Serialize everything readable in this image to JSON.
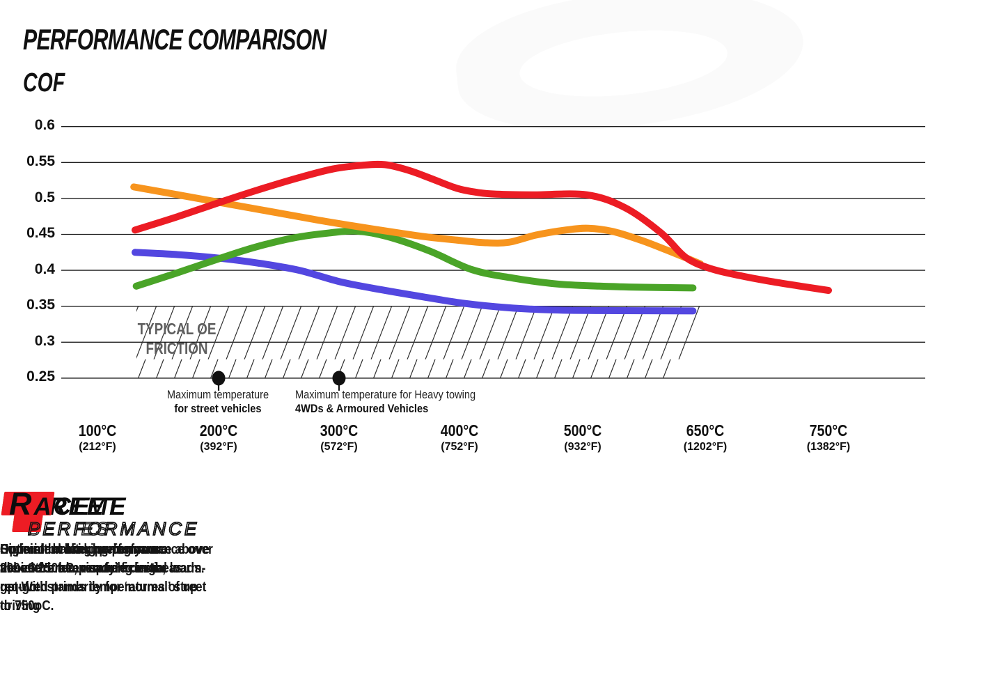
{
  "title": "PERFORMANCE COMPARISON",
  "chart_data": {
    "type": "line",
    "title": "PERFORMANCE COMPARISON",
    "ylabel": "COF",
    "xlabel": "",
    "ylim": [
      0.25,
      0.6
    ],
    "grid": "horizontal",
    "legend_position": "bottom",
    "y_ticks": [
      "0.6",
      "0.55",
      "0.5",
      "0.45",
      "0.4",
      "0.35",
      "0.3",
      "0.25"
    ],
    "x_ticks": [
      {
        "temp": 100,
        "label_c": "100°C",
        "label_f": "(212°F)"
      },
      {
        "temp": 200,
        "label_c": "200°C",
        "label_f": "(392°F)"
      },
      {
        "temp": 300,
        "label_c": "300°C",
        "label_f": "(572°F)"
      },
      {
        "temp": 400,
        "label_c": "400°C",
        "label_f": "(752°F)"
      },
      {
        "temp": 500,
        "label_c": "500°C",
        "label_f": "(932°F)"
      },
      {
        "temp": 650,
        "label_c": "650°C",
        "label_f": "(1202°F)"
      },
      {
        "temp": 750,
        "label_c": "750°C",
        "label_f": "(1382°F)"
      }
    ],
    "series": [
      {
        "name": "Street Series",
        "color": "#5347e0",
        "points": [
          [
            131,
            0.425
          ],
          [
            165,
            0.422
          ],
          [
            200,
            0.417
          ],
          [
            233,
            0.41
          ],
          [
            267,
            0.4
          ],
          [
            301,
            0.384
          ],
          [
            335,
            0.373
          ],
          [
            370,
            0.363
          ],
          [
            404,
            0.354
          ],
          [
            439,
            0.348
          ],
          [
            473,
            0.345
          ],
          [
            520,
            0.344
          ],
          [
            635,
            0.3435
          ]
        ]
      },
      {
        "name": "Street Performance",
        "color": "#4aa428",
        "points": [
          [
            132,
            0.378
          ],
          [
            165,
            0.396
          ],
          [
            200,
            0.416
          ],
          [
            230,
            0.432
          ],
          [
            262,
            0.445
          ],
          [
            292,
            0.452
          ],
          [
            315,
            0.4545
          ],
          [
            340,
            0.447
          ],
          [
            375,
            0.427
          ],
          [
            410,
            0.401
          ],
          [
            444,
            0.389
          ],
          [
            479,
            0.381
          ],
          [
            520,
            0.378
          ],
          [
            570,
            0.3765
          ],
          [
            635,
            0.3755
          ]
        ]
      },
      {
        "name": "Xtreme Performance",
        "color": "#f7941d",
        "points": [
          [
            130,
            0.516
          ],
          [
            170,
            0.504
          ],
          [
            209,
            0.492
          ],
          [
            249,
            0.48
          ],
          [
            289,
            0.468
          ],
          [
            330,
            0.457
          ],
          [
            370,
            0.447
          ],
          [
            398,
            0.442
          ],
          [
            420,
            0.4385
          ],
          [
            440,
            0.439
          ],
          [
            462,
            0.449
          ],
          [
            486,
            0.456
          ],
          [
            507,
            0.4585
          ],
          [
            537,
            0.454
          ],
          [
            571,
            0.442
          ],
          [
            601,
            0.429
          ],
          [
            626,
            0.4175
          ],
          [
            644,
            0.409
          ]
        ]
      },
      {
        "name": "Race Performance",
        "color": "#ec1c24",
        "points": [
          [
            131,
            0.456
          ],
          [
            165,
            0.474
          ],
          [
            200,
            0.494
          ],
          [
            233,
            0.512
          ],
          [
            267,
            0.529
          ],
          [
            295,
            0.541
          ],
          [
            318,
            0.546
          ],
          [
            338,
            0.547
          ],
          [
            358,
            0.539
          ],
          [
            376,
            0.528
          ],
          [
            398,
            0.514
          ],
          [
            416,
            0.508
          ],
          [
            430,
            0.506
          ],
          [
            460,
            0.505
          ],
          [
            505,
            0.505
          ],
          [
            552,
            0.487
          ],
          [
            596,
            0.452
          ],
          [
            626,
            0.418
          ],
          [
            655,
            0.402
          ],
          [
            680,
            0.392
          ],
          [
            705,
            0.384
          ],
          [
            727,
            0.378
          ],
          [
            750,
            0.372
          ]
        ]
      }
    ],
    "oe_band": {
      "label_line1": "TYPICAL OE",
      "label_line2": "FRICTION",
      "cof_from": 0.25,
      "cof_to": 0.35
    },
    "annotations": [
      {
        "temp": 200,
        "cof": 0.25,
        "line1": "Maximum temperature",
        "line2": "for street vehicles"
      },
      {
        "temp": 300,
        "cof": 0.25,
        "line1": "Maximum temperature for Heavy towing",
        "line2": "4WDs & Armoured Vehicles"
      }
    ]
  },
  "legend": [
    {
      "line1_first": "S",
      "line1_rest": "TREET",
      "line2": "SERIES",
      "color": "#5b4ff0",
      "description": "Consistent braking performance over\nthe entire temperature range, as\nrequired primarily for ‘normal’ street\ndriving"
    },
    {
      "line1_first": "S",
      "line1_rest": "TREET",
      "line2": "PERFORMANCE",
      "color": "#3fa52b",
      "description": "Superior braking performance above\n200oC for heavier vehicles or loads."
    },
    {
      "line1_first": "X",
      "line1_rest": "TREME",
      "line2": "PERFORMANCE",
      "color": "#f7941d",
      "description": "High initial bite, having your\nvehicle ‘brake-ready’ from the\nget-go."
    },
    {
      "line1_first": "R",
      "line1_rest": "ACE",
      "line2": "PERFORMANCE",
      "color": "#ed1c24",
      "description": "Optimal braking performance\nabove 250oC, requiring initial warm-\nup. Withstands temperatures of up\nto 750oC."
    }
  ]
}
